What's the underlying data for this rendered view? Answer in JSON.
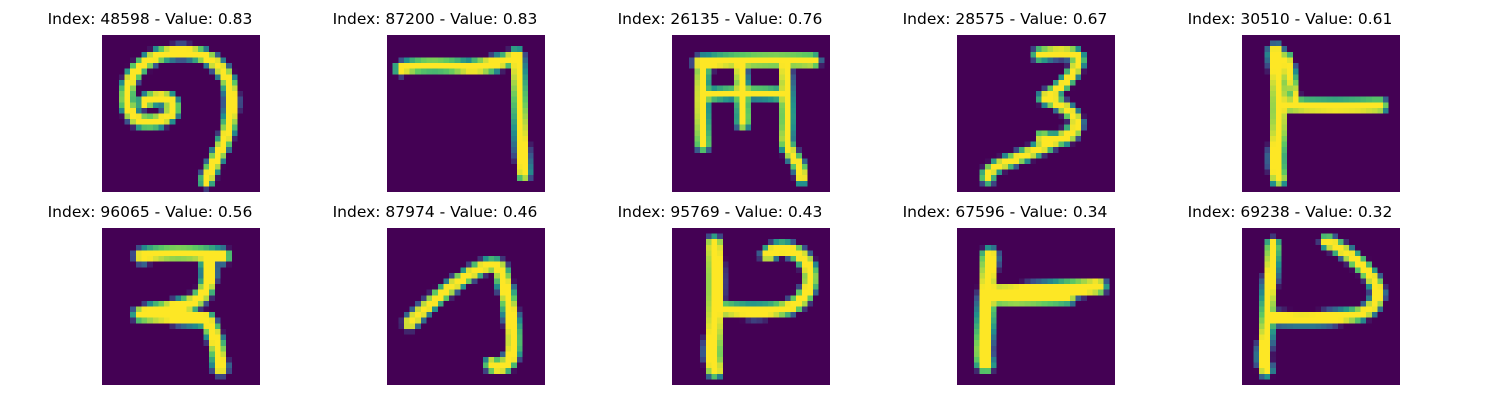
{
  "colors": {
    "background": "#440154",
    "stroke_core": "#fde725",
    "stroke_mid": "#5ec962",
    "stroke_edge": "#21918c",
    "stroke_outer": "#3b528b"
  },
  "panels": [
    {
      "title": "Index: 48598 - Value: 0.83",
      "glyph": "curled seven-like stroke with inner loop"
    },
    {
      "title": "Index: 87200 - Value: 0.83",
      "glyph": "horizontal bar with long right descender"
    },
    {
      "title": "Index: 26135 - Value: 0.76",
      "glyph": "top bar with three hanging stems"
    },
    {
      "title": "Index: 28575 - Value: 0.67",
      "glyph": "numeral three shape with long tail"
    },
    {
      "title": "Index: 30510 - Value: 0.61",
      "glyph": "vertical stroke with right horizontal arm"
    },
    {
      "title": "Index: 96065 - Value: 0.56",
      "glyph": "top bar with loop and descending stem"
    },
    {
      "title": "Index: 87974 - Value: 0.46",
      "glyph": "diagonal hook curve"
    },
    {
      "title": "Index: 95769 - Value: 0.43",
      "glyph": "vertical stroke with right bowl"
    },
    {
      "title": "Index: 67596 - Value: 0.34",
      "glyph": "vertical stroke with long horizontal arm"
    },
    {
      "title": "Index: 69238 - Value: 0.32",
      "glyph": "vertical stroke with open right loop"
    }
  ]
}
